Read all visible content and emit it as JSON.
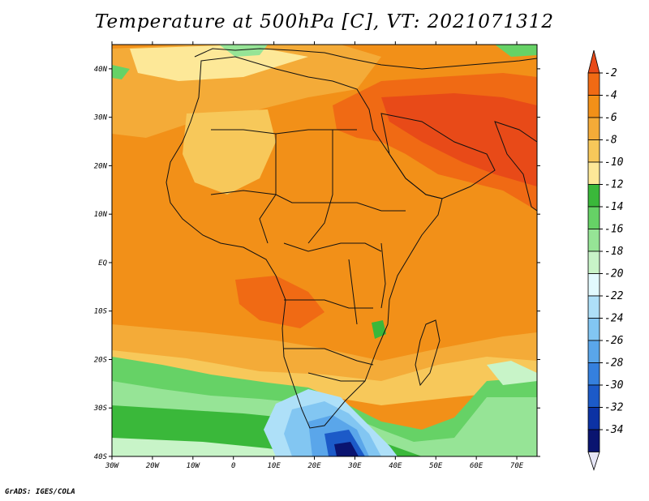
{
  "title": "Temperature at 500hPa [C], VT: 2021071312",
  "footer": "GrADS: IGES/COLA",
  "map": {
    "lon_range": [
      -30,
      75
    ],
    "lat_range": [
      -40,
      45
    ],
    "lon_ticks": [
      "30W",
      "20W",
      "10W",
      "0",
      "10E",
      "20E",
      "30E",
      "40E",
      "50E",
      "60E",
      "70E"
    ],
    "lat_ticks": [
      "40N",
      "30N",
      "20N",
      "10N",
      "EQ",
      "10S",
      "20S",
      "30S",
      "40S"
    ]
  },
  "colorbar": {
    "labels": [
      "-2",
      "-4",
      "-6",
      "-8",
      "-10",
      "-12",
      "-14",
      "-16",
      "-18",
      "-20",
      "-22",
      "-24",
      "-26",
      "-28",
      "-30",
      "-32",
      "-34"
    ],
    "colors": [
      "#e84a18",
      "#f06a14",
      "#f29018",
      "#f4ab38",
      "#f7c85a",
      "#fde898",
      "#3ab83a",
      "#66d266",
      "#96e496",
      "#c8f4c8",
      "#e2fafe",
      "#aee0f8",
      "#82c6f2",
      "#5aa6ea",
      "#3580de",
      "#1c5ac8",
      "#0c32a4",
      "#0a1470",
      "#e6e6f6"
    ]
  }
}
